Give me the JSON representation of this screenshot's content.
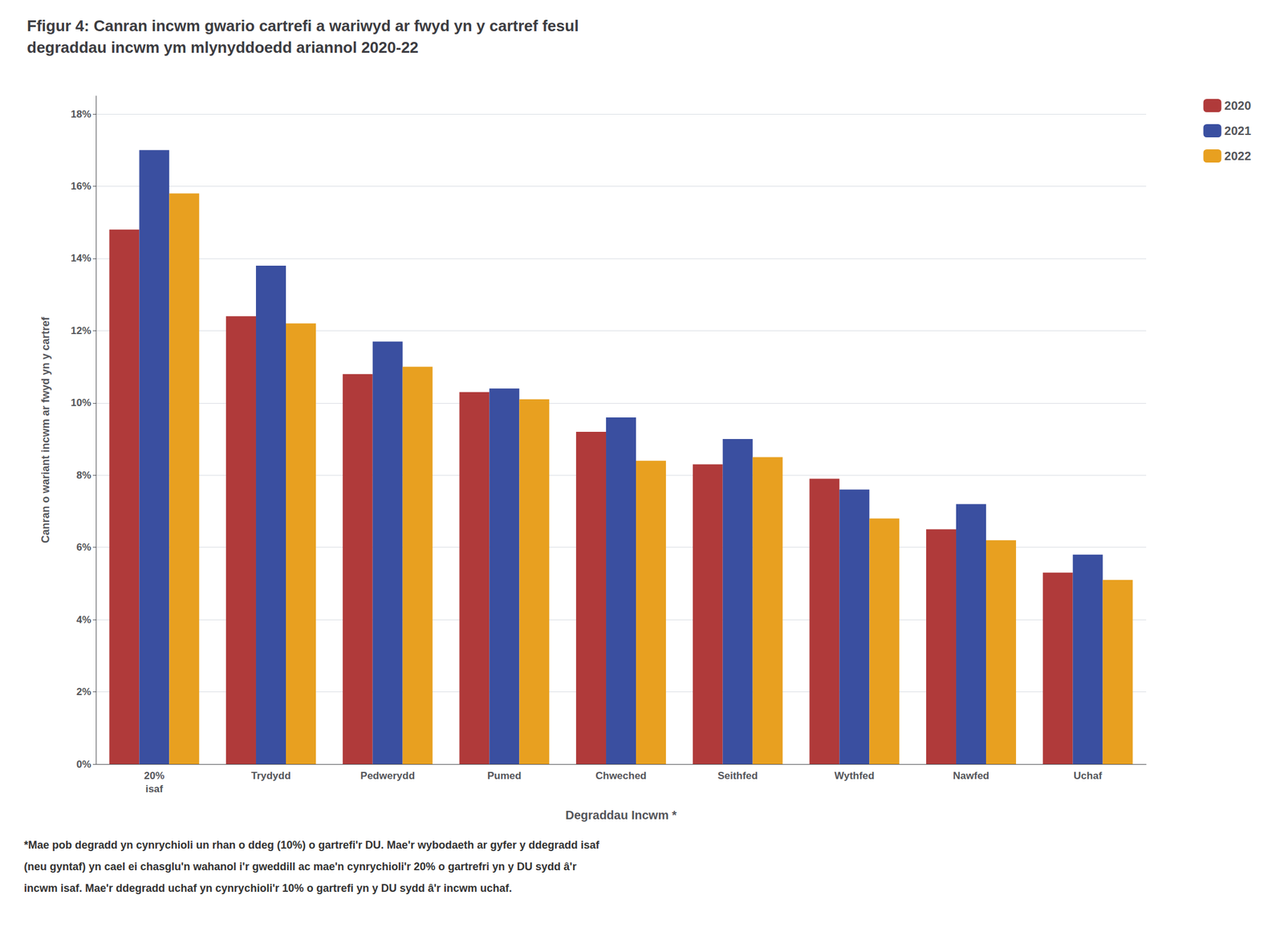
{
  "chart_data": {
    "type": "bar",
    "title": "Ffigur 4: Canran incwm gwario cartrefi a wariwyd ar fwyd yn y cartref fesul\ndegraddau incwm ym mlynyddoedd ariannol 2020-22",
    "xlabel": "Degraddau Incwm *",
    "ylabel": "Canran o wariant incwm ar fwyd yn y cartref",
    "categories": [
      "20%\nisaf",
      "Trydydd",
      "Pedwerydd",
      "Pumed",
      "Chweched",
      "Seithfed",
      "Wythfed",
      "Nawfed",
      "Uchaf"
    ],
    "series": [
      {
        "name": "2020",
        "color": "#B03A3A",
        "values": [
          0.148,
          0.124,
          0.108,
          0.103,
          0.092,
          0.083,
          0.079,
          0.065,
          0.053
        ]
      },
      {
        "name": "2021",
        "color": "#3A4FA0",
        "values": [
          0.17,
          0.138,
          0.117,
          0.104,
          0.096,
          0.09,
          0.076,
          0.072,
          0.058
        ]
      },
      {
        "name": "2022",
        "color": "#E8A020",
        "values": [
          0.158,
          0.122,
          0.11,
          0.101,
          0.084,
          0.085,
          0.068,
          0.062,
          0.051
        ]
      }
    ],
    "ylim": [
      0,
      0.185
    ],
    "yticks": [
      {
        "value": 0,
        "label": "0%"
      },
      {
        "value": 0.02,
        "label": "2%"
      },
      {
        "value": 0.04,
        "label": "4%"
      },
      {
        "value": 0.06,
        "label": "6%"
      },
      {
        "value": 0.08,
        "label": "8%"
      },
      {
        "value": 0.1,
        "label": "10%"
      },
      {
        "value": 0.12,
        "label": "12%"
      },
      {
        "value": 0.14,
        "label": "14%"
      },
      {
        "value": 0.16,
        "label": "16%"
      },
      {
        "value": 0.18,
        "label": "18%"
      }
    ],
    "grid": true,
    "legend": "upper right",
    "annotations": [
      "*Mae pob degradd yn cynrychioli un rhan o ddeg (10%) o gartrefi'r DU. Mae'r wybodaeth ar gyfer y ddegradd isaf",
      "(neu gyntaf) yn cael ei chasglu'n wahanol i'r gweddill ac mae'n cynrychioli'r 20% o gartrefri yn y DU sydd â'r",
      "incwm isaf. Mae'r ddegradd uchaf yn cynrychioli'r 10% o gartrefi yn y DU sydd â'r incwm uchaf."
    ]
  }
}
